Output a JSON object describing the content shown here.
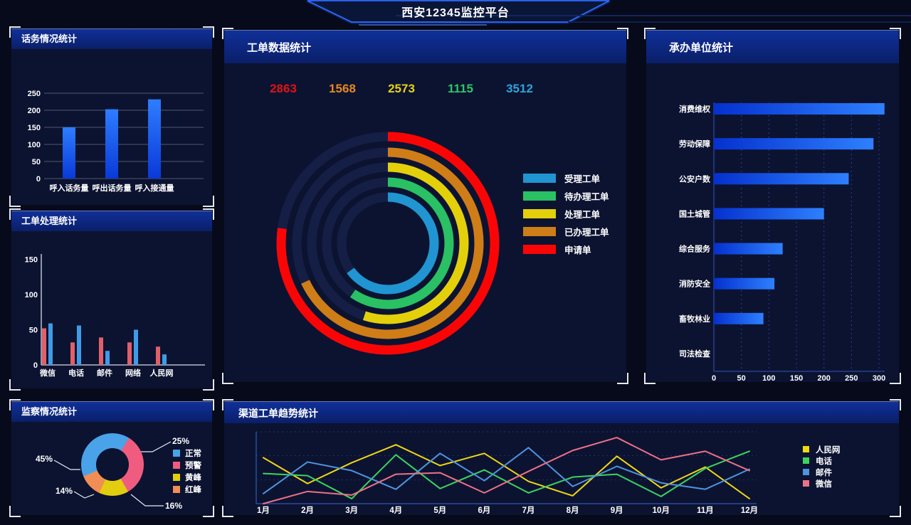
{
  "header": {
    "title": "西安12345监控平台"
  },
  "panels": {
    "call": {
      "title": "话务情况统计"
    },
    "process": {
      "title": "工单处理统计"
    },
    "monitor": {
      "title": "监察情况统计"
    },
    "orders": {
      "title": "工单数据统计"
    },
    "units": {
      "title": "承办单位统计"
    },
    "trend": {
      "title": "渠道工单趋势统计"
    }
  },
  "colors": {
    "panel_bg": "#0c1331",
    "accent_blue": "#1f5df0",
    "grid_gray": "#5c6577",
    "axis_white": "#d8dce6"
  },
  "chart_data": [
    {
      "id": "call_bars",
      "type": "bar",
      "title": "话务情况统计",
      "categories": [
        "呼入话务量",
        "呼出话务量",
        "呼入接通量"
      ],
      "values": [
        150,
        203,
        232
      ],
      "ylim": [
        0,
        250
      ],
      "yticks": [
        0,
        50,
        100,
        150,
        200,
        250
      ],
      "bar_gradient": [
        "#0a39d8",
        "#2e7dff"
      ],
      "grid": true
    },
    {
      "id": "process_bars",
      "type": "bar",
      "title": "工单处理统计",
      "categories": [
        "微信",
        "电话",
        "邮件",
        "网络",
        "人民网"
      ],
      "series": [
        {
          "name": "series-red",
          "color": "#e25f69",
          "values": [
            52,
            32,
            39,
            32,
            26
          ]
        },
        {
          "name": "series-blue",
          "color": "#3f9be7",
          "values": [
            59,
            56,
            20,
            50,
            15
          ]
        }
      ],
      "ylim": [
        0,
        160
      ],
      "yticks": [
        0,
        50,
        100,
        150
      ],
      "grid": false
    },
    {
      "id": "monitor_donut",
      "type": "pie",
      "title": "监察情况统计",
      "slices": [
        {
          "label": "正常",
          "pct": "45%",
          "color": "#4aa2e9",
          "start_deg": 248,
          "end_deg": 392
        },
        {
          "label": "预警",
          "pct": "25%",
          "color": "#f05c80",
          "start_deg": 32,
          "end_deg": 150
        },
        {
          "label": "黄峰",
          "pct": "16%",
          "color": "#e2ce0e",
          "start_deg": 150,
          "end_deg": 205
        },
        {
          "label": "红峰",
          "pct": "14%",
          "color": "#f08e55",
          "start_deg": 205,
          "end_deg": 248
        }
      ],
      "legend_position": "right"
    },
    {
      "id": "orders_rings",
      "type": "ring",
      "title": "工单数据统计",
      "values_row": [
        {
          "value": "2863",
          "color": "#e01112"
        },
        {
          "value": "1568",
          "color": "#e8891a"
        },
        {
          "value": "2573",
          "color": "#e6d214"
        },
        {
          "value": "1115",
          "color": "#2cc764"
        },
        {
          "value": "3512",
          "color": "#2ba4da"
        }
      ],
      "rings_outer_to_inner": [
        {
          "label": "申请单",
          "color": "#fa0505",
          "sweep_deg": 278,
          "radius": 150
        },
        {
          "label": "已办理工单",
          "color": "#cf7d17",
          "sweep_deg": 245,
          "radius": 128
        },
        {
          "label": "处理工单",
          "color": "#e3d00b",
          "sweep_deg": 198,
          "radius": 107
        },
        {
          "label": "待办理工单",
          "color": "#29c163",
          "sweep_deg": 215,
          "radius": 86
        },
        {
          "label": "受理工单",
          "color": "#2095d2",
          "sweep_deg": 234,
          "radius": 65
        }
      ],
      "legend": [
        {
          "label": "受理工单",
          "color": "#2095d2"
        },
        {
          "label": "待办理工单",
          "color": "#29c163"
        },
        {
          "label": "处理工单",
          "color": "#e3d00b"
        },
        {
          "label": "已办理工单",
          "color": "#cf7d17"
        },
        {
          "label": "申请单",
          "color": "#fa0505"
        }
      ]
    },
    {
      "id": "units_hbar",
      "type": "bar",
      "orientation": "horizontal",
      "title": "承办单位统计",
      "categories": [
        "消费维权",
        "劳动保障",
        "公安户数",
        "国土城管",
        "综合服务",
        "消防安全",
        "畜牧林业",
        "司法检查"
      ],
      "values": [
        310,
        290,
        245,
        200,
        125,
        110,
        90,
        0
      ],
      "xlim": [
        0,
        320
      ],
      "xticks": [
        0,
        50,
        100,
        150,
        200,
        250,
        300
      ],
      "bar_gradient": [
        "#0531cf",
        "#2e80ff"
      ],
      "grid": "dashed-vertical"
    },
    {
      "id": "trend_lines",
      "type": "line",
      "title": "渠道工单趋势统计",
      "x": [
        "1月",
        "2月",
        "3月",
        "4月",
        "5月",
        "6月",
        "7月",
        "8月",
        "9月",
        "10月",
        "11月",
        "12月"
      ],
      "series": [
        {
          "name": "人民网",
          "color": "#f0d813",
          "values": [
            64,
            28,
            57,
            82,
            53,
            70,
            31,
            11,
            66,
            22,
            51,
            7
          ]
        },
        {
          "name": "电话",
          "color": "#3bd45e",
          "values": [
            42,
            39,
            7,
            68,
            21,
            47,
            15,
            37,
            41,
            10,
            49,
            73
          ]
        },
        {
          "name": "邮件",
          "color": "#4f94dd",
          "values": [
            14,
            58,
            46,
            20,
            70,
            32,
            78,
            24,
            52,
            29,
            20,
            48
          ]
        },
        {
          "name": "微信",
          "color": "#ec7187",
          "values": [
            0,
            17,
            12,
            41,
            43,
            15,
            45,
            74,
            92,
            61,
            73,
            46
          ]
        }
      ],
      "ylim": [
        0,
        100
      ],
      "grid": "dotted-horizontal",
      "legend_position": "right"
    }
  ]
}
